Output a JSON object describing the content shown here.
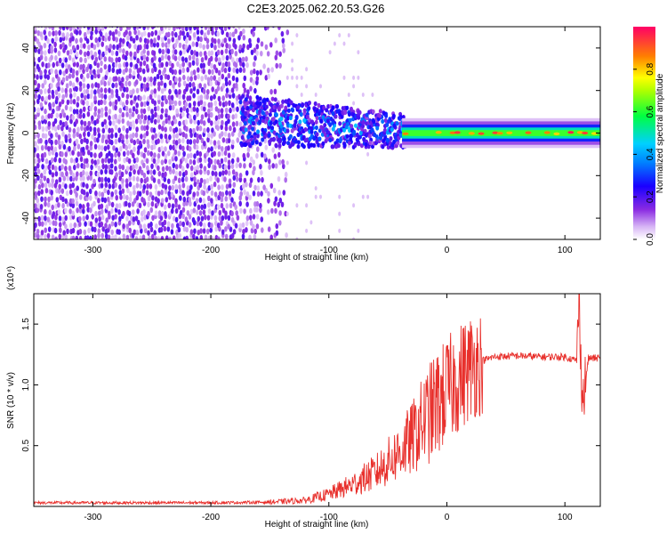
{
  "title": "C2E3.2025.062.20.53.G26",
  "colors": {
    "signal": "#e8302c",
    "colorbar": [
      "#ffffff",
      "#d7b5f5",
      "#8a2be2",
      "#1a00ff",
      "#00d0ff",
      "#00ff40",
      "#ffff00",
      "#ff8000",
      "#ff0033"
    ]
  },
  "chart_data": [
    {
      "type": "heatmap",
      "xlabel": "Height of straight line (km)",
      "ylabel": "Frequency (Hz)",
      "xlim": [
        -350,
        130
      ],
      "ylim": [
        -50,
        50
      ],
      "xticks": [
        "-300",
        "-200",
        "-100",
        "0",
        "100"
      ],
      "yticks": [
        "40",
        "20",
        "0",
        "-20",
        "-40"
      ],
      "colorbar": {
        "label": "Normalized spectral amplitude",
        "ticks": [
          "0.0",
          "0.2",
          "0.4",
          "0.6",
          "0.8"
        ],
        "range": [
          0,
          1
        ]
      },
      "regions": [
        {
          "x_range": [
            -350,
            -140
          ],
          "description_value": 0.3
        },
        {
          "x_range": [
            -175,
            -35
          ],
          "center_freq": 4,
          "peak": 0.35
        },
        {
          "x_range": [
            -35,
            130
          ],
          "center_freq": 0,
          "peak": 0.9
        }
      ]
    },
    {
      "type": "line",
      "xlabel": "Height of straight line (km)",
      "ylabel": "SNR (10 * v/v)",
      "scale_note": "(x10⁴)",
      "xlim": [
        -350,
        130
      ],
      "ylim": [
        0,
        1.75
      ],
      "xticks": [
        "-300",
        "-200",
        "-100",
        "0",
        "100"
      ],
      "yticks": [
        "1.5",
        "1.0",
        "0.5"
      ],
      "series": [
        {
          "x": [
            -350,
            -300,
            -250,
            -200,
            -150,
            -120,
            -100,
            -80,
            -60,
            -40,
            -30,
            -20,
            -10,
            0,
            10,
            20,
            30,
            40,
            60,
            80,
            100,
            110,
            112,
            115,
            120,
            130
          ],
          "values": [
            0.03,
            0.03,
            0.03,
            0.03,
            0.035,
            0.05,
            0.1,
            0.18,
            0.28,
            0.45,
            0.55,
            0.7,
            0.82,
            0.95,
            1.05,
            1.15,
            1.2,
            1.23,
            1.24,
            1.23,
            1.23,
            1.2,
            1.7,
            0.85,
            1.22,
            1.22
          ]
        }
      ]
    }
  ]
}
